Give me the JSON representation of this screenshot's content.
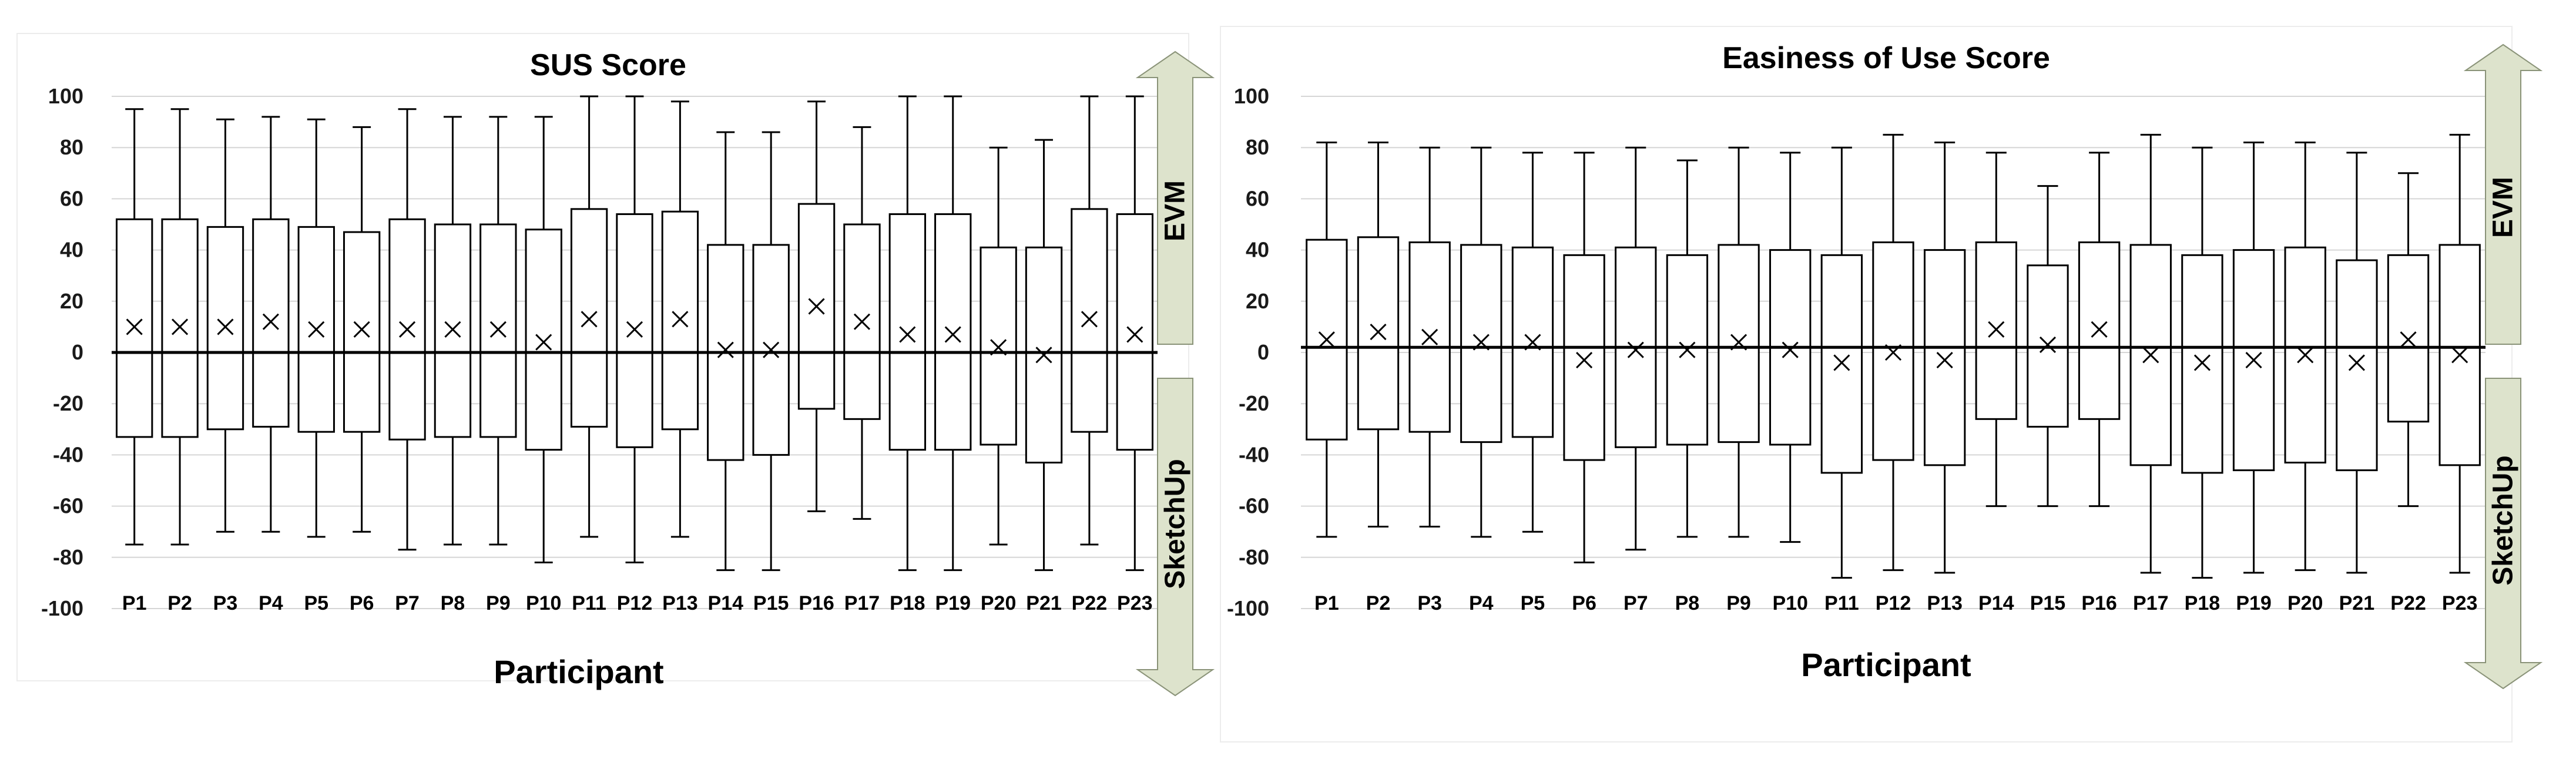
{
  "chart_data": [
    {
      "type": "box",
      "title": "SUS Score",
      "xlabel": "Participant",
      "ylabel": "",
      "ylim": [
        -100,
        100
      ],
      "yticks": [
        -100,
        -80,
        -60,
        -40,
        -20,
        0,
        20,
        40,
        60,
        80,
        100
      ],
      "grid": true,
      "reference_line": 0,
      "categories": [
        "P1",
        "P2",
        "P3",
        "P4",
        "P5",
        "P6",
        "P7",
        "P8",
        "P9",
        "P10",
        "P11",
        "P12",
        "P13",
        "P14",
        "P15",
        "P16",
        "P17",
        "P18",
        "P19",
        "P20",
        "P21",
        "P22",
        "P23"
      ],
      "whisker_low": [
        -75,
        -75,
        -70,
        -70,
        -72,
        -70,
        -77,
        -75,
        -75,
        -82,
        -72,
        -82,
        -72,
        -85,
        -85,
        -62,
        -65,
        -85,
        -85,
        -75,
        -85,
        -75,
        -85
      ],
      "q1": [
        -33,
        -33,
        -30,
        -29,
        -31,
        -31,
        -34,
        -33,
        -33,
        -38,
        -29,
        -37,
        -30,
        -42,
        -40,
        -22,
        -26,
        -38,
        -38,
        -36,
        -43,
        -31,
        -38
      ],
      "q3": [
        52,
        52,
        49,
        52,
        49,
        47,
        52,
        50,
        50,
        48,
        56,
        54,
        55,
        42,
        42,
        58,
        50,
        54,
        54,
        41,
        41,
        56,
        54
      ],
      "whisker_high": [
        95,
        95,
        91,
        92,
        91,
        88,
        95,
        92,
        92,
        92,
        100,
        100,
        98,
        86,
        86,
        98,
        88,
        100,
        100,
        80,
        83,
        100,
        100
      ],
      "mean": [
        10,
        10,
        10,
        12,
        9,
        9,
        9,
        9,
        9,
        4,
        13,
        9,
        13,
        1,
        1,
        18,
        12,
        7,
        7,
        2,
        -1,
        13,
        7
      ],
      "arrow": {
        "top_label": "EVM",
        "bottom_label": "SketchUp",
        "color": "#dde3cc"
      }
    },
    {
      "type": "box",
      "title": "Easiness of Use Score",
      "xlabel": "Participant",
      "ylabel": "",
      "ylim": [
        -100,
        100
      ],
      "yticks": [
        -100,
        -80,
        -60,
        -40,
        -20,
        0,
        20,
        40,
        60,
        80,
        100
      ],
      "grid": true,
      "reference_line": 2,
      "categories": [
        "P1",
        "P2",
        "P3",
        "P4",
        "P5",
        "P6",
        "P7",
        "P8",
        "P9",
        "P10",
        "P11",
        "P12",
        "P13",
        "P14",
        "P15",
        "P16",
        "P17",
        "P18",
        "P19",
        "P20",
        "P21",
        "P22",
        "P23"
      ],
      "whisker_low": [
        -72,
        -68,
        -68,
        -72,
        -70,
        -82,
        -77,
        -72,
        -72,
        -74,
        -88,
        -85,
        -86,
        -60,
        -60,
        -60,
        -86,
        -88,
        -86,
        -85,
        -86,
        -60,
        -86
      ],
      "q1": [
        -34,
        -30,
        -31,
        -35,
        -33,
        -42,
        -37,
        -36,
        -35,
        -36,
        -47,
        -42,
        -44,
        -26,
        -29,
        -26,
        -44,
        -47,
        -46,
        -43,
        -46,
        -27,
        -44
      ],
      "q3": [
        44,
        45,
        43,
        42,
        41,
        38,
        41,
        38,
        42,
        40,
        38,
        43,
        40,
        43,
        34,
        43,
        42,
        38,
        40,
        41,
        36,
        38,
        42
      ],
      "whisker_high": [
        82,
        82,
        80,
        80,
        78,
        78,
        80,
        75,
        80,
        78,
        80,
        85,
        82,
        78,
        65,
        78,
        85,
        80,
        82,
        82,
        78,
        70,
        85
      ],
      "mean": [
        5,
        8,
        6,
        4,
        4,
        -3,
        1,
        1,
        4,
        1,
        -4,
        0,
        -3,
        9,
        3,
        9,
        -1,
        -4,
        -3,
        -1,
        -4,
        5,
        -1
      ],
      "arrow": {
        "top_label": "EVM",
        "bottom_label": "SketchUp",
        "color": "#dde3cc"
      }
    }
  ]
}
